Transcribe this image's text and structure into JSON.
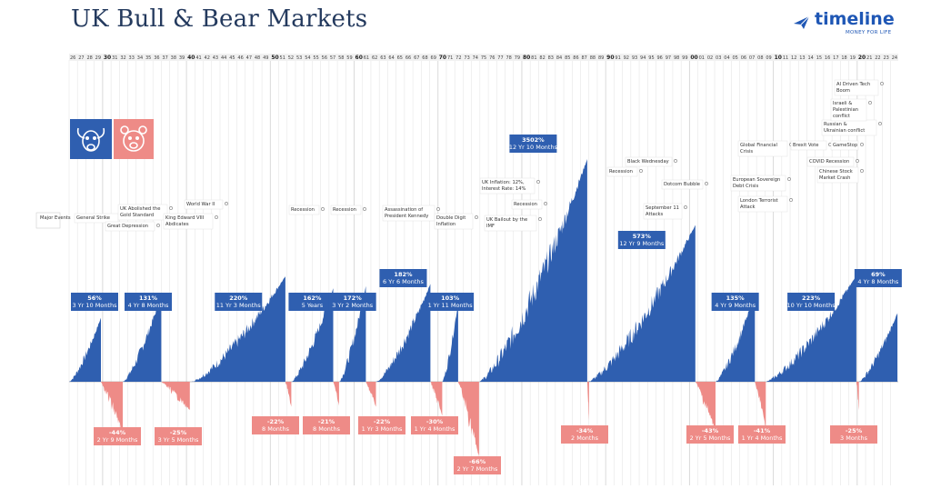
{
  "title": "UK Bull & Bear Markets",
  "logo": {
    "word": "timeline",
    "tag": "MONEY FOR LIFE"
  },
  "major_events_label": "Major Events",
  "colors": {
    "bull": "#2f5fb0",
    "bear": "#ee8b87",
    "title": "#243a5e"
  },
  "chart_data": {
    "type": "area",
    "title": "UK Bull & Bear Markets",
    "x_axis_labels": [
      "26",
      "27",
      "28",
      "29",
      "30",
      "31",
      "32",
      "33",
      "34",
      "35",
      "36",
      "37",
      "38",
      "39",
      "40",
      "41",
      "42",
      "43",
      "44",
      "45",
      "46",
      "47",
      "48",
      "49",
      "50",
      "51",
      "52",
      "53",
      "54",
      "55",
      "56",
      "57",
      "58",
      "59",
      "60",
      "61",
      "62",
      "63",
      "64",
      "65",
      "66",
      "67",
      "68",
      "69",
      "70",
      "71",
      "72",
      "73",
      "74",
      "75",
      "76",
      "77",
      "78",
      "79",
      "80",
      "81",
      "82",
      "83",
      "84",
      "85",
      "86",
      "87",
      "88",
      "89",
      "90",
      "91",
      "92",
      "93",
      "94",
      "95",
      "96",
      "97",
      "98",
      "99",
      "00",
      "01",
      "02",
      "03",
      "04",
      "05",
      "06",
      "07",
      "08",
      "09",
      "10",
      "11",
      "12",
      "13",
      "14",
      "15",
      "16",
      "17",
      "18",
      "19",
      "20",
      "21",
      "22",
      "23",
      "24"
    ],
    "bull_markets": [
      {
        "start": 1926.0,
        "end": 1929.8,
        "gain": "56%",
        "duration": "3 Yr 10 Months"
      },
      {
        "start": 1932.4,
        "end": 1937.0,
        "gain": "131%",
        "duration": "4 Yr 8 Months"
      },
      {
        "start": 1940.6,
        "end": 1951.8,
        "gain": "220%",
        "duration": "11 Yr 3 Months"
      },
      {
        "start": 1952.5,
        "end": 1957.5,
        "gain": "162%",
        "duration": "5 Years"
      },
      {
        "start": 1958.2,
        "end": 1961.4,
        "gain": "172%",
        "duration": "3 Yr 2 Months"
      },
      {
        "start": 1962.6,
        "end": 1969.1,
        "gain": "182%",
        "duration": "6 Yr 6 Months"
      },
      {
        "start": 1970.5,
        "end": 1972.4,
        "gain": "103%",
        "duration": "1 Yr 11 Months"
      },
      {
        "start": 1974.9,
        "end": 1987.8,
        "gain": "3502%",
        "duration": "12 Yr 10 Months"
      },
      {
        "start": 1987.9,
        "end": 2000.7,
        "gain": "573%",
        "duration": "12 Yr 9 Months"
      },
      {
        "start": 2003.1,
        "end": 2007.8,
        "gain": "135%",
        "duration": "4 Yr 9 Months"
      },
      {
        "start": 2009.1,
        "end": 2019.9,
        "gain": "223%",
        "duration": "10 Yr 10 Months"
      },
      {
        "start": 2020.2,
        "end": 2024.8,
        "gain": "69%",
        "duration": "4 Yr 8 Months"
      }
    ],
    "bear_markets": [
      {
        "start": 1929.8,
        "end": 1932.4,
        "loss": "-44%",
        "duration": "2 Yr 9 Months"
      },
      {
        "start": 1937.0,
        "end": 1940.4,
        "loss": "-25%",
        "duration": "3 Yr 5 Months"
      },
      {
        "start": 1951.8,
        "end": 1952.5,
        "loss": "-22%",
        "duration": "8 Months"
      },
      {
        "start": 1957.5,
        "end": 1958.2,
        "loss": "-21%",
        "duration": "8 Months"
      },
      {
        "start": 1961.4,
        "end": 1962.6,
        "loss": "-22%",
        "duration": "1 Yr 3 Months"
      },
      {
        "start": 1969.1,
        "end": 1970.5,
        "loss": "-30%",
        "duration": "1 Yr 4 Months"
      },
      {
        "start": 1972.4,
        "end": 1974.9,
        "loss": "-66%",
        "duration": "2 Yr 7 Months"
      },
      {
        "start": 1987.8,
        "end": 1987.9,
        "loss": "-34%",
        "duration": "2 Months"
      },
      {
        "start": 2000.7,
        "end": 2003.1,
        "loss": "-43%",
        "duration": "2 Yr 5 Months"
      },
      {
        "start": 2007.8,
        "end": 2009.1,
        "loss": "-41%",
        "duration": "1 Yr 4 Months"
      },
      {
        "start": 2019.9,
        "end": 2020.2,
        "loss": "-25%",
        "duration": "3 Months"
      }
    ],
    "events": [
      {
        "text": "General Strike",
        "year": 1926.4
      },
      {
        "text": "UK Abolished the Gold Standard",
        "year": 1931.7
      },
      {
        "text": "Great Depression",
        "year": 1929.8
      },
      {
        "text": "King Edward VIII Abdicates",
        "year": 1936.9
      },
      {
        "text": "World War II",
        "year": 1939.7
      },
      {
        "text": "Recession",
        "year": 1956.5
      },
      {
        "text": "Recession",
        "year": 1961.3
      },
      {
        "text": "Assassination of President Kennedy",
        "year": 1963.9
      },
      {
        "text": "Double Digit Inflation",
        "year": 1973.5
      },
      {
        "text": "UK Inflation: 12%, Interest Rate: 14%",
        "year": 1979.5
      },
      {
        "text": "UK Bailout by the IMF",
        "year": 1976.0
      },
      {
        "text": "Recession",
        "year": 1981.0
      },
      {
        "text": "Recession",
        "year": 1990.3
      },
      {
        "text": "Black Wednesday",
        "year": 1992.7
      },
      {
        "text": "Dotcom Bubble",
        "year": 2000.2
      },
      {
        "text": "September 11 Attacks",
        "year": 2001.7
      },
      {
        "text": "Global Financial Crisis",
        "year": 2008.5
      },
      {
        "text": "European Sovereign Debt Crisis",
        "year": 2010.4
      },
      {
        "text": "London Terrorist Attack",
        "year": 2005.5
      },
      {
        "text": "Brexit Vote",
        "year": 2016.5
      },
      {
        "text": "GameStop",
        "year": 2021.1
      },
      {
        "text": "COVID Recession",
        "year": 2020.2
      },
      {
        "text": "Chinese Stock Market Crash",
        "year": 2015.5
      },
      {
        "text": "Russian & Ukrainian conflict",
        "year": 2022.2
      },
      {
        "text": "Israeli & Palestinian conflict",
        "year": 2023.8
      },
      {
        "text": "AI Driven Tech Boom",
        "year": 2024.5
      }
    ]
  }
}
